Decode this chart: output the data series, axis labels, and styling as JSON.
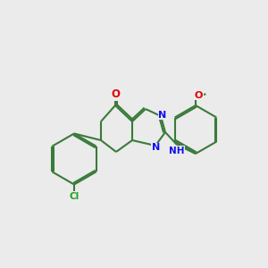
{
  "background_color": "#ebebeb",
  "bond_color": "#3a7a3a",
  "bond_color_dark": "#2d5a2d",
  "atom_colors": {
    "O": "#e00000",
    "N": "#1010ee",
    "Cl": "#20a020",
    "C": "#3a7a3a"
  },
  "figsize": [
    3.0,
    3.0
  ],
  "dpi": 100,
  "lw": 1.5,
  "fontsize": 8.5
}
